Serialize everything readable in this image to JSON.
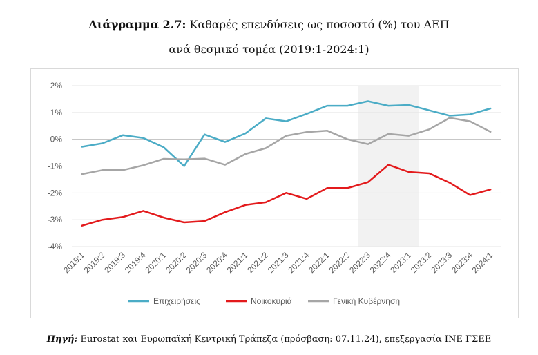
{
  "title": {
    "prefix": "Διάγραμμα 2.7:",
    "main": "Καθαρές επενδύσεις ως ποσοστό (%) του ΑΕΠ",
    "subtitle": "ανά θεσμικό τομέα (2019:1-2024:1)"
  },
  "source": {
    "label": "Πηγή:",
    "text": "Eurostat και Ευρωπαϊκή Κεντρική Τράπεζα (πρόσβαση: 07.11.24), επεξεργασία ΙΝΕ ΓΣΕΕ"
  },
  "chart_data": {
    "type": "line",
    "title": "Καθαρές επενδύσεις ως ποσοστό (%) του ΑΕΠ ανά θεσμικό τομέα (2019:1-2024:1)",
    "xlabel": "",
    "ylabel": "",
    "ylim": [
      -4,
      2
    ],
    "yticks": [
      2,
      1,
      0,
      -1,
      -2,
      -3,
      -4
    ],
    "ytick_labels": [
      "2%",
      "1%",
      "0%",
      "-1%",
      "-2%",
      "-3%",
      "-4%"
    ],
    "grid": "horizontal",
    "legend_position": "bottom",
    "shaded_region": {
      "from": "2022:3",
      "to": "2023:1",
      "color": "#f2f2f2"
    },
    "categories": [
      "2019:1",
      "2019:2",
      "2019:3",
      "2019:4",
      "2020:1",
      "2020:2",
      "2020:3",
      "2020:4",
      "2021:1",
      "2021:2",
      "2021:3",
      "2021:4",
      "2022:1",
      "2022:2",
      "2022:3",
      "2022:4",
      "2023:1",
      "2023:2",
      "2023:3",
      "2023:4",
      "2024:1"
    ],
    "series": [
      {
        "name": "Επιχειρήσεις",
        "color": "#4bacc6",
        "values": [
          -0.28,
          -0.15,
          0.15,
          0.05,
          -0.3,
          -1.0,
          0.18,
          -0.1,
          0.22,
          0.78,
          0.67,
          0.95,
          1.25,
          1.25,
          1.42,
          1.25,
          1.28,
          1.08,
          0.88,
          0.93,
          1.15
        ]
      },
      {
        "name": "Νοικοκυριά",
        "color": "#e31a1c",
        "values": [
          -3.22,
          -3.0,
          -2.9,
          -2.67,
          -2.92,
          -3.1,
          -3.05,
          -2.72,
          -2.45,
          -2.35,
          -2.0,
          -2.22,
          -1.82,
          -1.82,
          -1.6,
          -0.95,
          -1.22,
          -1.27,
          -1.62,
          -2.08,
          -1.87
        ]
      },
      {
        "name": "Γενική Κυβέρνηση",
        "color": "#a6a6a6",
        "values": [
          -1.3,
          -1.15,
          -1.15,
          -0.97,
          -0.73,
          -0.75,
          -0.72,
          -0.95,
          -0.55,
          -0.33,
          0.13,
          0.27,
          0.32,
          0.0,
          -0.18,
          0.2,
          0.13,
          0.37,
          0.8,
          0.67,
          0.28
        ]
      }
    ]
  }
}
